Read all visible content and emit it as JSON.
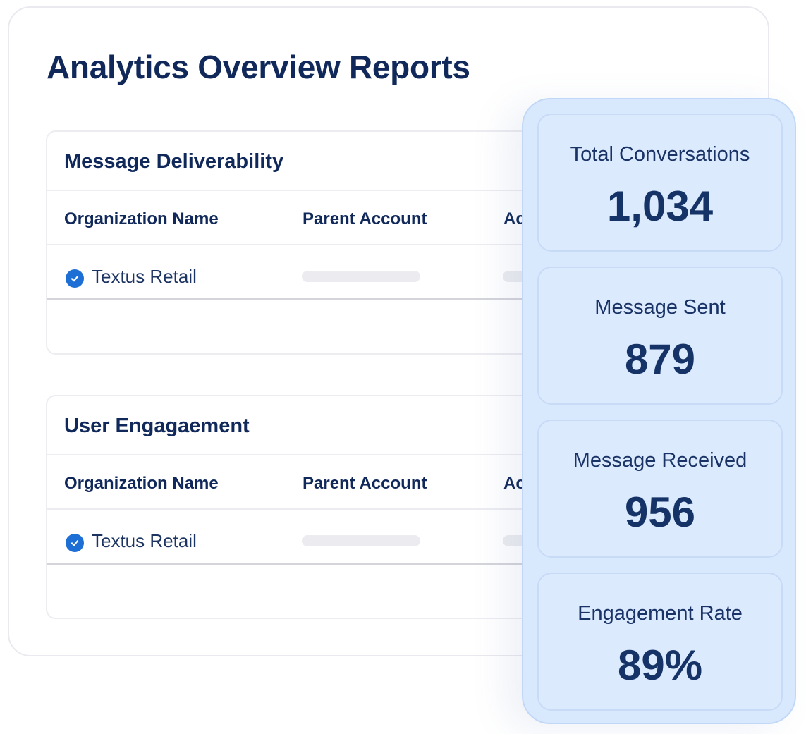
{
  "page": {
    "title": "Analytics Overview Reports"
  },
  "tables": [
    {
      "title": "Message Deliverability",
      "columns": [
        "Organization Name",
        "Parent Account",
        "Ac"
      ],
      "rows": [
        {
          "organization": "Textus Retail",
          "status_icon": "check-circle-icon"
        }
      ]
    },
    {
      "title": "User Engagaement",
      "columns": [
        "Organization Name",
        "Parent Account",
        "Ac"
      ],
      "rows": [
        {
          "organization": "Textus Retail",
          "status_icon": "check-circle-icon"
        }
      ]
    }
  ],
  "stats": [
    {
      "label": "Total Conversations",
      "value": "1,034"
    },
    {
      "label": "Message Sent",
      "value": "879"
    },
    {
      "label": "Message Received",
      "value": "956"
    },
    {
      "label": "Engagement Rate",
      "value": "89%"
    }
  ],
  "colors": {
    "title_navy": "#10295a",
    "check_blue": "#1d6fd6",
    "stats_panel_bg": "#d8e8fd",
    "stat_card_bg": "#dceafe"
  }
}
